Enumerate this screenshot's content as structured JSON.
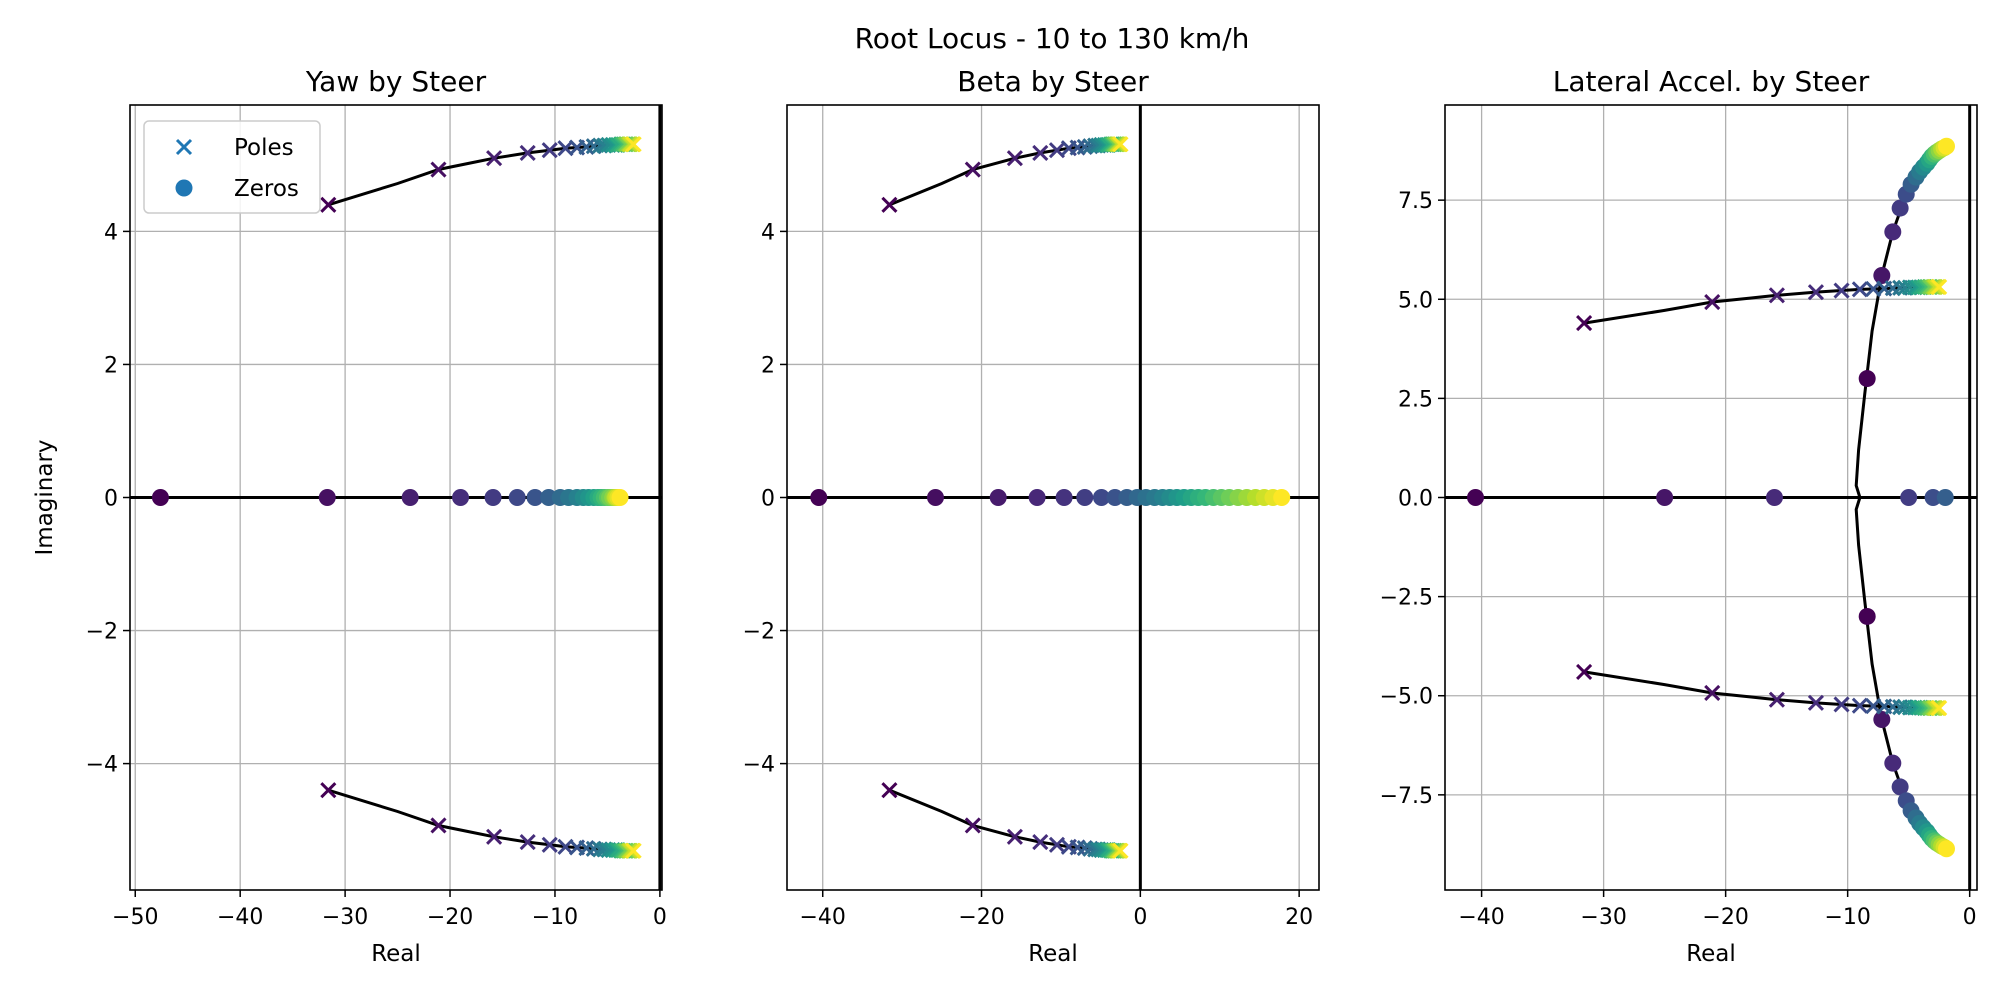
{
  "figure": {
    "suptitle": "Root Locus - 10 to 130 km/h",
    "colormap_start": "#440154",
    "colormap_end": "#fde725",
    "line_color": "#000000",
    "legend_color": "#1f77b4"
  },
  "chart_data": [
    {
      "type": "scatter",
      "title": "Yaw by Steer",
      "xlabel": "Real",
      "ylabel": "Imaginary",
      "xlim": [
        -50.5,
        0.2
      ],
      "ylim": [
        -5.9,
        5.9
      ],
      "xticks": [
        -50,
        -40,
        -30,
        -20,
        -10,
        0
      ],
      "yticks": [
        -4,
        -2,
        0,
        2,
        4
      ],
      "ytick_decimals": 0,
      "grid": true,
      "legend": {
        "location": "upper left",
        "entries": [
          "Poles",
          "Zeros"
        ]
      },
      "series": [
        {
          "name": "Poles",
          "marker": "x",
          "x": [
            -31.6,
            -21.1,
            -15.8,
            -12.6,
            -10.5,
            -9.0,
            -7.9,
            -7.0,
            -6.3,
            -5.7,
            -5.3,
            -4.9,
            -4.5,
            -4.2,
            -4.0,
            -3.7,
            -3.5,
            -3.3,
            -3.2,
            -3.0,
            -2.9,
            -2.8,
            -2.6,
            -2.5
          ],
          "y": [
            4.4,
            4.93,
            5.1,
            5.18,
            5.22,
            5.25,
            5.26,
            5.27,
            5.28,
            5.29,
            5.29,
            5.3,
            5.3,
            5.3,
            5.3,
            5.31,
            5.31,
            5.31,
            5.31,
            5.31,
            5.31,
            5.31,
            5.31,
            5.31
          ],
          "mirror": true
        },
        {
          "name": "Zeros",
          "marker": "o",
          "x": [
            -47.6,
            -31.7,
            -23.8,
            -19.0,
            -15.9,
            -13.6,
            -11.9,
            -10.6,
            -9.5,
            -8.7,
            -7.9,
            -7.3,
            -6.8,
            -6.3,
            -5.9,
            -5.6,
            -5.3,
            -5.0,
            -4.8,
            -4.5,
            -4.3,
            -4.2,
            -4.0,
            -3.8
          ],
          "y": [
            0,
            0,
            0,
            0,
            0,
            0,
            0,
            0,
            0,
            0,
            0,
            0,
            0,
            0,
            0,
            0,
            0,
            0,
            0,
            0,
            0,
            0,
            0,
            0
          ],
          "mirror": false
        }
      ],
      "locus": [
        {
          "x": [
            -31.6,
            -25,
            -21.1,
            -18,
            -15.8,
            -12.6,
            -10.5,
            -9.0,
            -7.0,
            -5.3,
            -4.0,
            -3.2,
            -2.5
          ],
          "y": [
            4.4,
            4.72,
            4.93,
            5.03,
            5.1,
            5.18,
            5.22,
            5.25,
            5.27,
            5.29,
            5.3,
            5.31,
            5.31
          ]
        },
        {
          "x": [
            -31.6,
            -25,
            -21.1,
            -18,
            -15.8,
            -12.6,
            -10.5,
            -9.0,
            -7.0,
            -5.3,
            -4.0,
            -3.2,
            -2.5
          ],
          "y": [
            -4.4,
            -4.72,
            -4.93,
            -5.03,
            -5.1,
            -5.18,
            -5.22,
            -5.25,
            -5.27,
            -5.29,
            -5.3,
            -5.31,
            -5.31
          ]
        }
      ]
    },
    {
      "type": "scatter",
      "title": "Beta by Steer",
      "xlabel": "Real",
      "ylabel": "",
      "xlim": [
        -44.5,
        22.5
      ],
      "ylim": [
        -5.9,
        5.9
      ],
      "xticks": [
        -40,
        -20,
        0,
        20
      ],
      "yticks": [
        -4,
        -2,
        0,
        2,
        4
      ],
      "ytick_decimals": 0,
      "grid": true,
      "legend": null,
      "series": [
        {
          "name": "Poles",
          "marker": "x",
          "x": [
            -31.6,
            -21.1,
            -15.8,
            -12.6,
            -10.5,
            -9.0,
            -7.9,
            -7.0,
            -6.3,
            -5.7,
            -5.3,
            -4.9,
            -4.5,
            -4.2,
            -4.0,
            -3.7,
            -3.5,
            -3.3,
            -3.2,
            -3.0,
            -2.9,
            -2.8,
            -2.6,
            -2.5
          ],
          "y": [
            4.4,
            4.93,
            5.1,
            5.18,
            5.22,
            5.25,
            5.26,
            5.27,
            5.28,
            5.29,
            5.29,
            5.3,
            5.3,
            5.3,
            5.3,
            5.31,
            5.31,
            5.31,
            5.31,
            5.31,
            5.31,
            5.31,
            5.31,
            5.31
          ],
          "mirror": true
        },
        {
          "name": "Zeros",
          "marker": "o",
          "x": [
            -40.5,
            -25.8,
            -17.9,
            -13.0,
            -9.6,
            -7.0,
            -4.9,
            -3.2,
            -1.7,
            -0.4,
            0.7,
            1.8,
            2.8,
            3.7,
            4.6,
            5.5,
            6.4,
            7.3,
            8.2,
            9.2,
            10.2,
            11.2,
            12.3,
            13.4,
            14.5,
            15.6,
            16.7,
            17.8
          ],
          "y": [
            0,
            0,
            0,
            0,
            0,
            0,
            0,
            0,
            0,
            0,
            0,
            0,
            0,
            0,
            0,
            0,
            0,
            0,
            0,
            0,
            0,
            0,
            0,
            0,
            0,
            0,
            0,
            0
          ],
          "mirror": false
        }
      ],
      "locus": [
        {
          "x": [
            -31.6,
            -25,
            -21.1,
            -18,
            -15.8,
            -12.6,
            -10.5,
            -9.0,
            -7.0,
            -5.3,
            -4.0,
            -3.2,
            -2.5
          ],
          "y": [
            4.4,
            4.72,
            4.93,
            5.03,
            5.1,
            5.18,
            5.22,
            5.25,
            5.27,
            5.29,
            5.3,
            5.31,
            5.31
          ]
        },
        {
          "x": [
            -31.6,
            -25,
            -21.1,
            -18,
            -15.8,
            -12.6,
            -10.5,
            -9.0,
            -7.0,
            -5.3,
            -4.0,
            -3.2,
            -2.5
          ],
          "y": [
            -4.4,
            -4.72,
            -4.93,
            -5.03,
            -5.1,
            -5.18,
            -5.22,
            -5.25,
            -5.27,
            -5.29,
            -5.3,
            -5.31,
            -5.31
          ]
        }
      ]
    },
    {
      "type": "scatter",
      "title": "Lateral Accel. by Steer",
      "xlabel": "Real",
      "ylabel": "",
      "xlim": [
        -43,
        0.6
      ],
      "ylim": [
        -9.9,
        9.9
      ],
      "xticks": [
        -40,
        -30,
        -20,
        -10,
        0
      ],
      "yticks": [
        -7.5,
        -5.0,
        -2.5,
        0.0,
        2.5,
        5.0,
        7.5
      ],
      "ytick_decimals": 1,
      "grid": true,
      "legend": null,
      "series": [
        {
          "name": "Poles",
          "marker": "x",
          "x": [
            -31.6,
            -21.1,
            -15.8,
            -12.6,
            -10.5,
            -9.0,
            -7.9,
            -7.0,
            -6.3,
            -5.7,
            -5.3,
            -4.9,
            -4.5,
            -4.2,
            -4.0,
            -3.7,
            -3.5,
            -3.3,
            -3.2,
            -3.0,
            -2.9,
            -2.8,
            -2.6,
            -2.5
          ],
          "y": [
            4.4,
            4.93,
            5.1,
            5.18,
            5.22,
            5.25,
            5.26,
            5.27,
            5.28,
            5.29,
            5.29,
            5.3,
            5.3,
            5.3,
            5.3,
            5.31,
            5.31,
            5.31,
            5.31,
            5.31,
            5.31,
            5.31,
            5.31,
            5.31
          ],
          "mirror": true
        },
        {
          "name": "Zeros",
          "marker": "o",
          "x": [
            -40.5,
            -25.0,
            -16.0,
            -5.0,
            -3.0,
            -2.0,
            -8.4,
            -7.2,
            -6.3,
            -5.7,
            -5.2,
            -4.8,
            -4.4,
            -4.1,
            -3.8,
            -3.5,
            -3.3,
            -3.1,
            -2.9,
            -2.7,
            -2.5,
            -2.3,
            -2.1,
            -1.9
          ],
          "y": [
            0,
            0,
            0,
            0,
            0,
            0,
            3.0,
            5.6,
            6.7,
            7.3,
            7.65,
            7.9,
            8.08,
            8.22,
            8.33,
            8.43,
            8.52,
            8.6,
            8.66,
            8.71,
            8.75,
            8.79,
            8.82,
            8.86
          ],
          "mirror_from": 6
        }
      ],
      "locus": [
        {
          "x": [
            -31.6,
            -25,
            -21.1,
            -18,
            -15.8,
            -12.6,
            -10.5,
            -9.0,
            -7.0,
            -5.3,
            -4.0,
            -3.2,
            -2.5
          ],
          "y": [
            4.4,
            4.72,
            4.93,
            5.03,
            5.1,
            5.18,
            5.22,
            5.25,
            5.27,
            5.29,
            5.3,
            5.31,
            5.31
          ]
        },
        {
          "x": [
            -31.6,
            -25,
            -21.1,
            -18,
            -15.8,
            -12.6,
            -10.5,
            -9.0,
            -7.0,
            -5.3,
            -4.0,
            -3.2,
            -2.5
          ],
          "y": [
            -4.4,
            -4.72,
            -4.93,
            -5.03,
            -5.1,
            -5.18,
            -5.22,
            -5.25,
            -5.27,
            -5.29,
            -5.3,
            -5.31,
            -5.31
          ]
        },
        {
          "x": [
            -1.9,
            -2.7,
            -3.5,
            -4.4,
            -5.2,
            -6.3,
            -7.2,
            -8.0,
            -8.6,
            -9.1,
            -9.3,
            -9.0
          ],
          "y": [
            8.86,
            8.71,
            8.43,
            8.08,
            7.65,
            6.7,
            5.6,
            4.2,
            2.6,
            1.2,
            0.3,
            0.0
          ]
        },
        {
          "x": [
            -1.9,
            -2.7,
            -3.5,
            -4.4,
            -5.2,
            -6.3,
            -7.2,
            -8.0,
            -8.6,
            -9.1,
            -9.3,
            -9.0
          ],
          "y": [
            -8.86,
            -8.71,
            -8.43,
            -8.08,
            -7.65,
            -6.7,
            -5.6,
            -4.2,
            -2.6,
            -1.2,
            -0.3,
            0.0
          ]
        }
      ]
    }
  ]
}
